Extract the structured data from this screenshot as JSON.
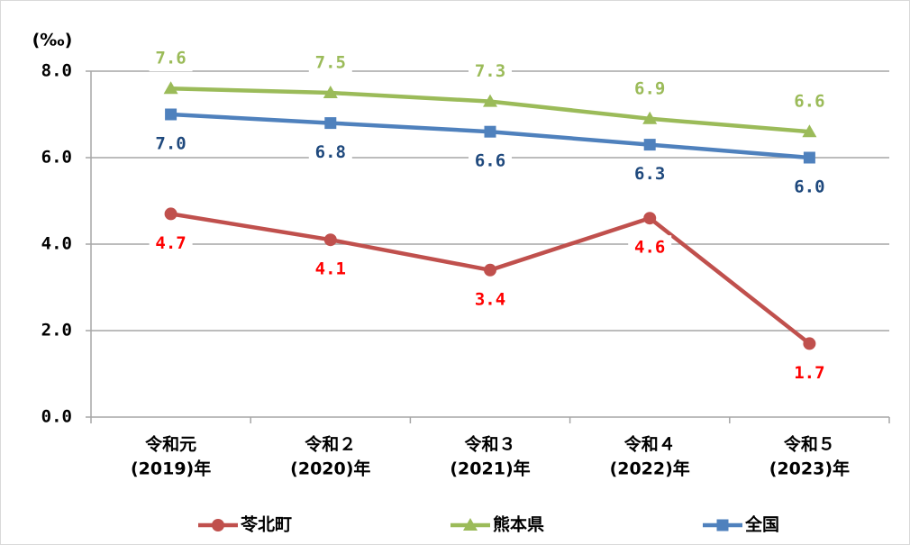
{
  "chart_data": {
    "type": "line",
    "y_axis_label": "(‰)",
    "categories": [
      [
        "令和元",
        "(2019)年"
      ],
      [
        "令和２",
        "(2020)年"
      ],
      [
        "令和３",
        "(2021)年"
      ],
      [
        "令和４",
        "(2022)年"
      ],
      [
        "令和５",
        "(2023)年"
      ]
    ],
    "series": [
      {
        "name": "苓北町",
        "color": "#c0504d",
        "label_color": "#ff0000",
        "marker": "circle",
        "label_side": "below",
        "values": [
          4.7,
          4.1,
          3.4,
          4.6,
          1.7
        ],
        "value_labels": [
          "4.7",
          "4.1",
          "3.4",
          "4.6",
          "1.7"
        ]
      },
      {
        "name": "熊本県",
        "color": "#9bbb59",
        "label_color": "#9bbb59",
        "marker": "triangle",
        "label_side": "above",
        "values": [
          7.6,
          7.5,
          7.3,
          6.9,
          6.6
        ],
        "value_labels": [
          "7.6",
          "7.5",
          "7.3",
          "6.9",
          "6.6"
        ]
      },
      {
        "name": "全国",
        "color": "#4f81bd",
        "label_color": "#1f497d",
        "marker": "square",
        "label_side": "below",
        "values": [
          7.0,
          6.8,
          6.6,
          6.3,
          6.0
        ],
        "value_labels": [
          "7.0",
          "6.8",
          "6.6",
          "6.3",
          "6.0"
        ]
      }
    ],
    "ylim": [
      0,
      8
    ],
    "yticks": [
      {
        "value": 0,
        "label": "0.0"
      },
      {
        "value": 2,
        "label": "2.0"
      },
      {
        "value": 4,
        "label": "4.0"
      },
      {
        "value": 6,
        "label": "6.0"
      },
      {
        "value": 8,
        "label": "8.0"
      }
    ],
    "grid": true
  }
}
